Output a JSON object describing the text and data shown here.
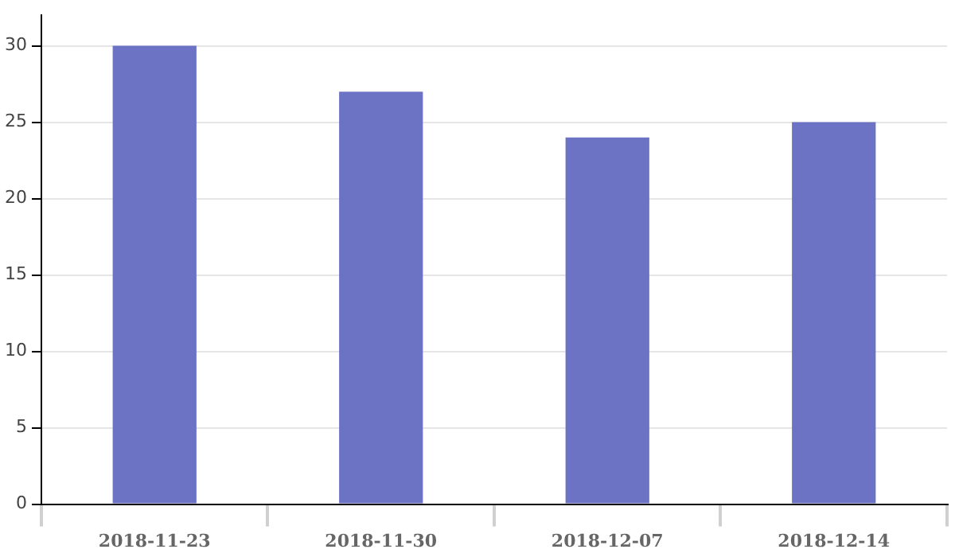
{
  "chart_data": {
    "type": "bar",
    "categories": [
      "2018-11-23",
      "2018-11-30",
      "2018-12-07",
      "2018-12-14"
    ],
    "values": [
      30,
      27,
      24,
      25
    ],
    "color": "#6c73c4",
    "ylim": [
      0,
      32
    ],
    "yticks": [
      0,
      5,
      10,
      15,
      20,
      25,
      30
    ],
    "grid": "y",
    "legend": false
  }
}
